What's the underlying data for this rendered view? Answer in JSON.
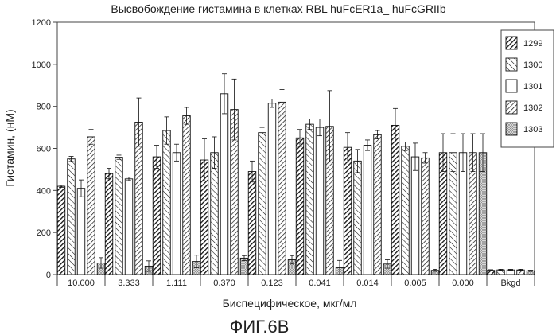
{
  "figure_caption": "ФИГ.6B",
  "chart_data": {
    "type": "bar",
    "title": "Высвобождение гистамина в клетках RBL huFcER1a_ huFcGRIIb",
    "xlabel": "Биспецифическое, мкг/мл",
    "ylabel": "Гистамин, (нМ)",
    "ylim": [
      0,
      1200
    ],
    "yticks": [
      0,
      200,
      400,
      600,
      800,
      1000,
      1200
    ],
    "grid": false,
    "legend_position": "top-right",
    "categories": [
      "10.000",
      "3.333",
      "1.111",
      "0.370",
      "0.123",
      "0.041",
      "0.014",
      "0.005",
      "0.000",
      "Bkgd"
    ],
    "series": [
      {
        "name": "1299",
        "pattern": "diag-dense",
        "values": [
          420,
          480,
          560,
          545,
          490,
          650,
          605,
          710,
          580,
          20
        ],
        "errors": [
          5,
          25,
          55,
          100,
          50,
          40,
          70,
          80,
          90,
          3
        ]
      },
      {
        "name": "1300",
        "pattern": "diag-sparse-back",
        "values": [
          550,
          558,
          685,
          580,
          675,
          715,
          540,
          610,
          580,
          22
        ],
        "errors": [
          12,
          10,
          65,
          75,
          25,
          25,
          55,
          20,
          90,
          3
        ]
      },
      {
        "name": "1301",
        "pattern": "blank",
        "values": [
          410,
          455,
          580,
          860,
          815,
          700,
          615,
          560,
          580,
          22
        ],
        "errors": [
          40,
          8,
          40,
          95,
          20,
          40,
          25,
          65,
          90,
          3
        ]
      },
      {
        "name": "1302",
        "pattern": "diag-medium",
        "values": [
          655,
          725,
          755,
          785,
          820,
          705,
          665,
          555,
          580,
          22
        ],
        "errors": [
          35,
          115,
          40,
          145,
          60,
          170,
          20,
          25,
          90,
          3
        ]
      },
      {
        "name": "1303",
        "pattern": "dots",
        "values": [
          55,
          40,
          62,
          78,
          70,
          32,
          50,
          20,
          580,
          18
        ],
        "errors": [
          25,
          25,
          30,
          12,
          20,
          35,
          20,
          5,
          90,
          3
        ]
      }
    ]
  }
}
